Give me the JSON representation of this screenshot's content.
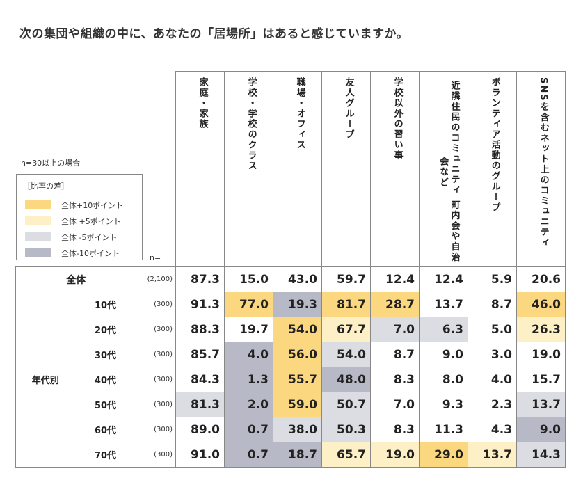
{
  "title": "次の集団や組織の中に、あなたの「居場所」はあると感じていますか。",
  "n_note": "n=30以上の場合",
  "legend": {
    "header": "［比率の差］",
    "items": [
      {
        "label": "全体+10ポイント",
        "color": "#fbd880"
      },
      {
        "label": "全体 +5ポイント",
        "color": "#fdefc6"
      },
      {
        "label": "全体 -5ポイント",
        "color": "#dcdde2"
      },
      {
        "label": "全体-10ポイント",
        "color": "#b7bac6"
      }
    ]
  },
  "n_label": "n=",
  "colors": {
    "plus10": "#fbd880",
    "plus5": "#fdefc6",
    "minus5": "#dcdde2",
    "minus10": "#b7bac6",
    "none": "#ffffff"
  },
  "chart_data": {
    "type": "table",
    "title": "次の集団や組織の中に、あなたの「居場所」はあると感じていますか。",
    "columns": [
      "家庭・家族",
      "学校・学校のクラス",
      "職場・オフィス",
      "友人グループ",
      "学校以外の習い事",
      "近隣住民のコミュニティ 町内会や自治会など",
      "ボランティア活動のグループ",
      "SNSを含むネット上のコミュニティ"
    ],
    "group_label": "年代別",
    "rows": [
      {
        "label": "全体",
        "n": "(2,100)",
        "values": [
          "87.3",
          "15.0",
          "43.0",
          "59.7",
          "12.4",
          "12.4",
          "5.9",
          "20.6"
        ],
        "shade": [
          "none",
          "none",
          "none",
          "none",
          "none",
          "none",
          "none",
          "none"
        ]
      },
      {
        "label": "10代",
        "n": "(300)",
        "values": [
          "91.3",
          "77.0",
          "19.3",
          "81.7",
          "28.7",
          "13.7",
          "8.7",
          "46.0"
        ],
        "shade": [
          "none",
          "plus10",
          "minus10",
          "plus10",
          "plus10",
          "none",
          "none",
          "plus10"
        ]
      },
      {
        "label": "20代",
        "n": "(300)",
        "values": [
          "88.3",
          "19.7",
          "54.0",
          "67.7",
          "7.0",
          "6.3",
          "5.0",
          "26.3"
        ],
        "shade": [
          "none",
          "none",
          "plus10",
          "plus5",
          "minus5",
          "minus5",
          "none",
          "plus5"
        ]
      },
      {
        "label": "30代",
        "n": "(300)",
        "values": [
          "85.7",
          "4.0",
          "56.0",
          "54.0",
          "8.7",
          "9.0",
          "3.0",
          "19.0"
        ],
        "shade": [
          "none",
          "minus10",
          "plus10",
          "minus5",
          "none",
          "none",
          "none",
          "none"
        ]
      },
      {
        "label": "40代",
        "n": "(300)",
        "values": [
          "84.3",
          "1.3",
          "55.7",
          "48.0",
          "8.3",
          "8.0",
          "4.0",
          "15.7"
        ],
        "shade": [
          "none",
          "minus10",
          "plus10",
          "minus10",
          "none",
          "none",
          "none",
          "none"
        ]
      },
      {
        "label": "50代",
        "n": "(300)",
        "values": [
          "81.3",
          "2.0",
          "59.0",
          "50.7",
          "7.0",
          "9.3",
          "2.3",
          "13.7"
        ],
        "shade": [
          "minus5",
          "minus10",
          "plus10",
          "minus5",
          "none",
          "none",
          "none",
          "minus5"
        ]
      },
      {
        "label": "60代",
        "n": "(300)",
        "values": [
          "89.0",
          "0.7",
          "38.0",
          "50.3",
          "8.3",
          "11.3",
          "4.3",
          "9.0"
        ],
        "shade": [
          "none",
          "minus10",
          "minus5",
          "minus5",
          "none",
          "none",
          "none",
          "minus10"
        ]
      },
      {
        "label": "70代",
        "n": "(300)",
        "values": [
          "91.0",
          "0.7",
          "18.7",
          "65.7",
          "19.0",
          "29.0",
          "13.7",
          "14.3"
        ],
        "shade": [
          "none",
          "minus10",
          "minus10",
          "plus5",
          "plus5",
          "plus10",
          "plus5",
          "minus5"
        ]
      }
    ]
  }
}
